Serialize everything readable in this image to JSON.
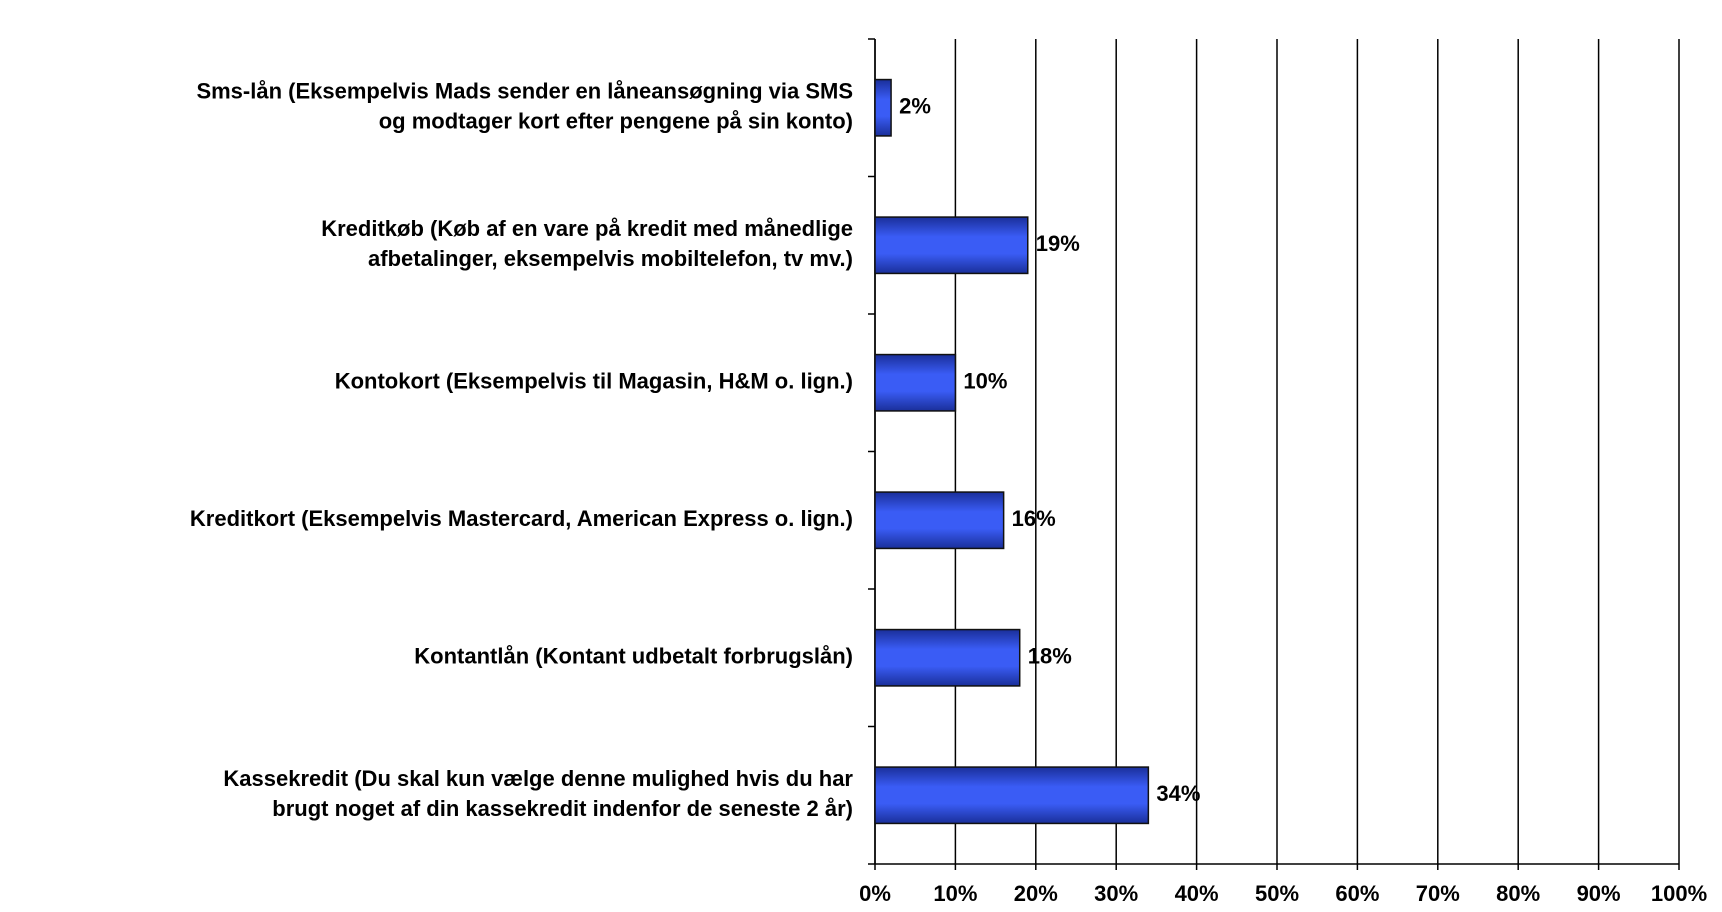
{
  "chart_data": {
    "type": "barh",
    "categories": [
      [
        "Sms-lån (Eksempelvis Mads sender en låneansøgning via SMS",
        "og modtager kort efter pengene på sin konto)"
      ],
      [
        "Kreditkøb (Køb af en vare på kredit med månedlige",
        "afbetalinger, eksempelvis mobiltelefon, tv mv.)"
      ],
      [
        "Kontokort (Eksempelvis til Magasin, H&M o. lign.)"
      ],
      [
        "Kreditkort (Eksempelvis Mastercard, American Express o. lign.)"
      ],
      [
        "Kontantlån (Kontant udbetalt forbrugslån)"
      ],
      [
        "Kassekredit (Du skal kun vælge denne mulighed hvis du har",
        "brugt noget af din kassekredit indenfor de seneste 2 år)"
      ]
    ],
    "values": [
      2,
      19,
      10,
      16,
      18,
      34
    ],
    "value_labels": [
      "2%",
      "19%",
      "10%",
      "16%",
      "18%",
      "34%"
    ],
    "color": "#3355ee",
    "xlim": [
      0,
      100
    ],
    "xticks": [
      {
        "value": 0,
        "label": "0%"
      },
      {
        "value": 10,
        "label": "10%"
      },
      {
        "value": 20,
        "label": "20%"
      },
      {
        "value": 30,
        "label": "30%"
      },
      {
        "value": 40,
        "label": "40%"
      },
      {
        "value": 50,
        "label": "50%"
      },
      {
        "value": 60,
        "label": "60%"
      },
      {
        "value": 70,
        "label": "70%"
      },
      {
        "value": 80,
        "label": "80%"
      },
      {
        "value": 90,
        "label": "90%"
      },
      {
        "value": 100,
        "label": "100%"
      }
    ],
    "grid": true
  }
}
